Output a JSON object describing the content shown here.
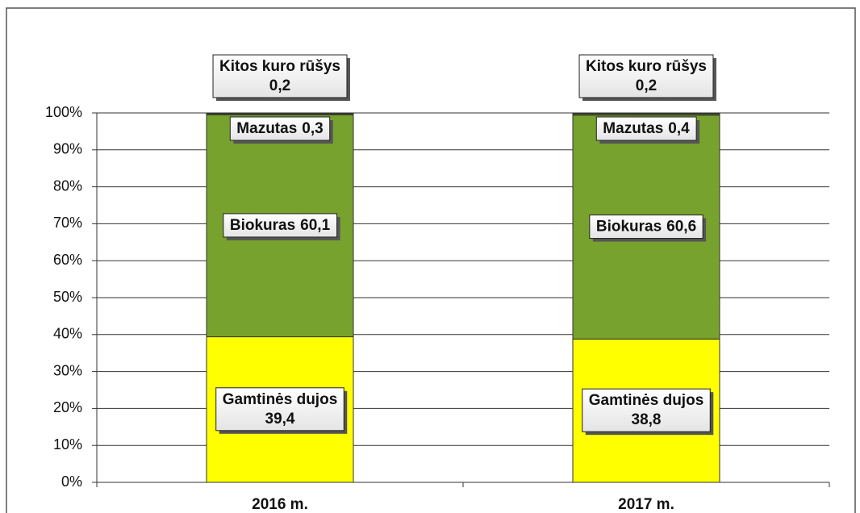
{
  "chart_data": {
    "type": "stacked_bar",
    "categories": [
      "2016 m.",
      "2017 m."
    ],
    "series": [
      {
        "name": "Gamtinės dujos",
        "color": "#ffff00",
        "values": [
          39.4,
          38.8
        ],
        "value_labels": [
          "39,4",
          "38,8"
        ]
      },
      {
        "name": "Biokuras",
        "color": "#77a22e",
        "values": [
          60.1,
          60.6
        ],
        "value_labels": [
          "60,1",
          "60,6"
        ]
      },
      {
        "name": "Mazutas",
        "color": "#4a6d1e",
        "values": [
          0.3,
          0.4
        ],
        "value_labels": [
          "0,3",
          "0,4"
        ]
      },
      {
        "name": "Kitos kuro rūšys",
        "color": "#9a9a9a",
        "values": [
          0.2,
          0.2
        ],
        "value_labels": [
          "0,2",
          "0,2"
        ]
      }
    ],
    "ylim": [
      0,
      100
    ],
    "yticks": [
      {
        "value": 0,
        "label": "0%"
      },
      {
        "value": 10,
        "label": "10%"
      },
      {
        "value": 20,
        "label": "20%"
      },
      {
        "value": 30,
        "label": "30%"
      },
      {
        "value": 40,
        "label": "40%"
      },
      {
        "value": 50,
        "label": "50%"
      },
      {
        "value": 60,
        "label": "60%"
      },
      {
        "value": 70,
        "label": "70%"
      },
      {
        "value": 80,
        "label": "80%"
      },
      {
        "value": 90,
        "label": "90%"
      },
      {
        "value": 100,
        "label": "100%"
      }
    ],
    "grid": true
  }
}
